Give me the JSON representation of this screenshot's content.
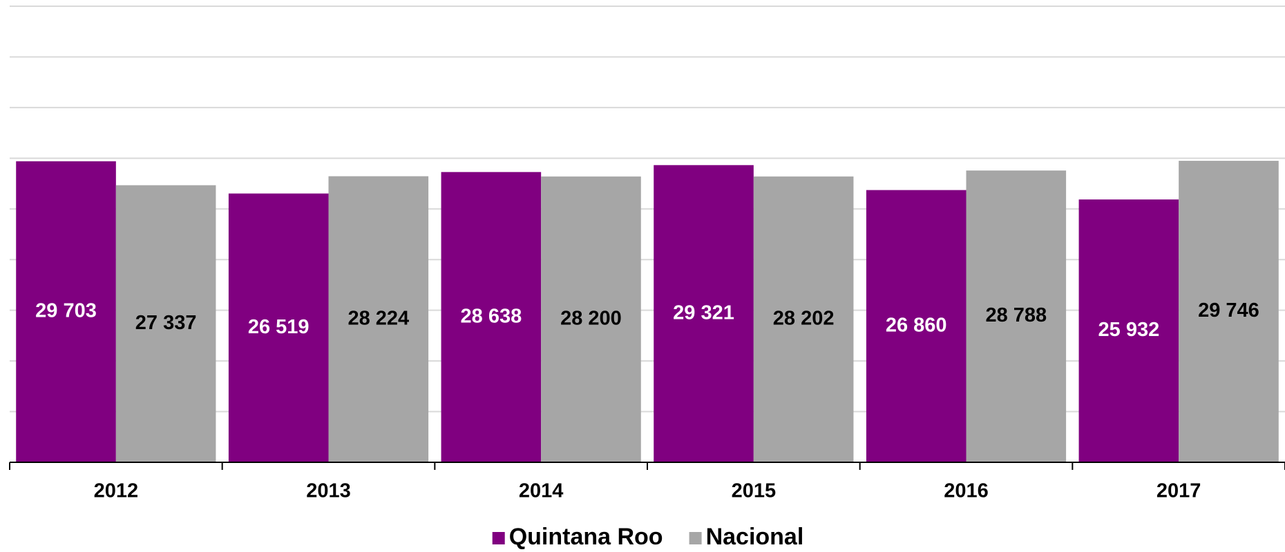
{
  "chart_data": {
    "type": "bar",
    "categories": [
      "2012",
      "2013",
      "2014",
      "2015",
      "2016",
      "2017"
    ],
    "series": [
      {
        "name": "Quintana Roo",
        "color": "#800080",
        "label_color": "#ffffff",
        "values": [
          29703,
          26519,
          28638,
          29321,
          26860,
          25932
        ],
        "value_labels": [
          "29 703",
          "26 519",
          "28 638",
          "29 321",
          "26 860",
          "25 932"
        ]
      },
      {
        "name": "Nacional",
        "color": "#a6a6a6",
        "label_color": "#000000",
        "values": [
          27337,
          28224,
          28200,
          28202,
          28788,
          29746
        ],
        "value_labels": [
          "27 337",
          "28 224",
          "28 200",
          "28 202",
          "28 788",
          "29 746"
        ]
      }
    ],
    "ylim": [
      0,
      45000
    ],
    "yticks": [
      0,
      5000,
      10000,
      15000,
      20000,
      25000,
      30000,
      35000,
      40000,
      45000
    ],
    "grid": true,
    "legend": "bottom"
  }
}
